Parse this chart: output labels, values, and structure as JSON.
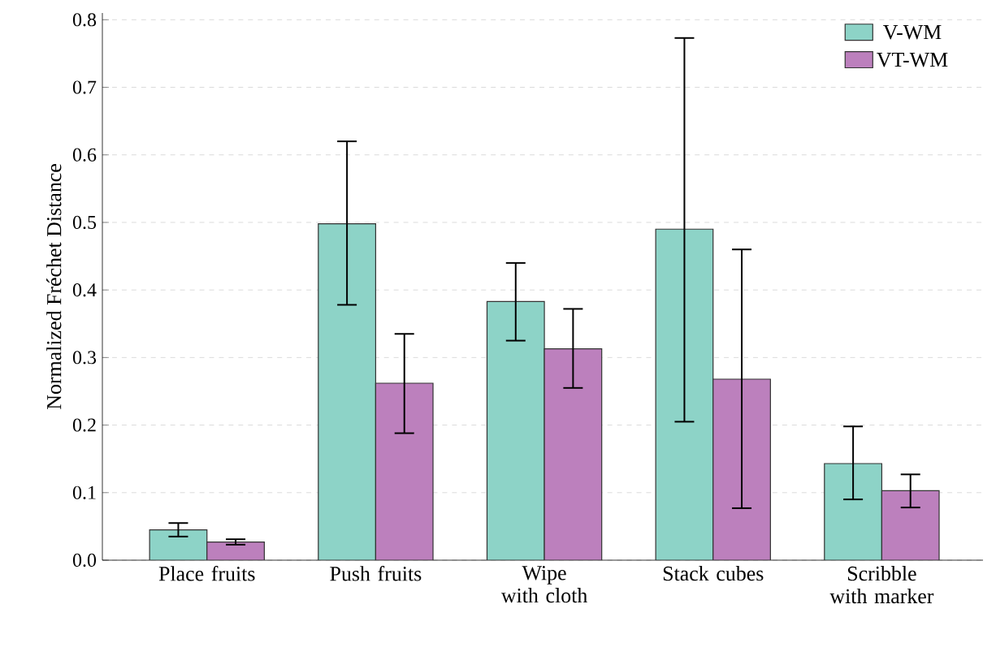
{
  "chart_data": {
    "type": "bar",
    "ylabel": "Normalized Fréchet Distance",
    "categories": [
      "Place fruits",
      "Push fruits",
      "Wipe with cloth",
      "Stack cubes",
      "Scribble with marker"
    ],
    "series": [
      {
        "name": "V-WM",
        "color": "#8dd3c7",
        "values": [
          0.045,
          0.498,
          0.383,
          0.49,
          0.143
        ],
        "errors": [
          [
            0.035,
            0.055
          ],
          [
            0.378,
            0.62
          ],
          [
            0.325,
            0.44
          ],
          [
            0.205,
            0.773
          ],
          [
            0.09,
            0.198
          ]
        ]
      },
      {
        "name": "VT-WM",
        "color": "#bc80bd",
        "values": [
          0.027,
          0.262,
          0.313,
          0.268,
          0.103
        ],
        "errors": [
          [
            0.023,
            0.031
          ],
          [
            0.188,
            0.335
          ],
          [
            0.255,
            0.372
          ],
          [
            0.077,
            0.46
          ],
          [
            0.078,
            0.127
          ]
        ]
      }
    ],
    "ylim": [
      0,
      0.81
    ],
    "yticks": [
      {
        "value": 0,
        "label": "0.0"
      },
      {
        "value": 0.1,
        "label": "0.1"
      },
      {
        "value": 0.2,
        "label": "0.2"
      },
      {
        "value": 0.3,
        "label": "0.3"
      },
      {
        "value": 0.4,
        "label": "0.4"
      },
      {
        "value": 0.5,
        "label": "0.5"
      },
      {
        "value": 0.6,
        "label": "0.6"
      },
      {
        "value": 0.7,
        "label": "0.7"
      },
      {
        "value": 0.8,
        "label": "0.8"
      }
    ],
    "grid": "y",
    "legend": "top right"
  }
}
